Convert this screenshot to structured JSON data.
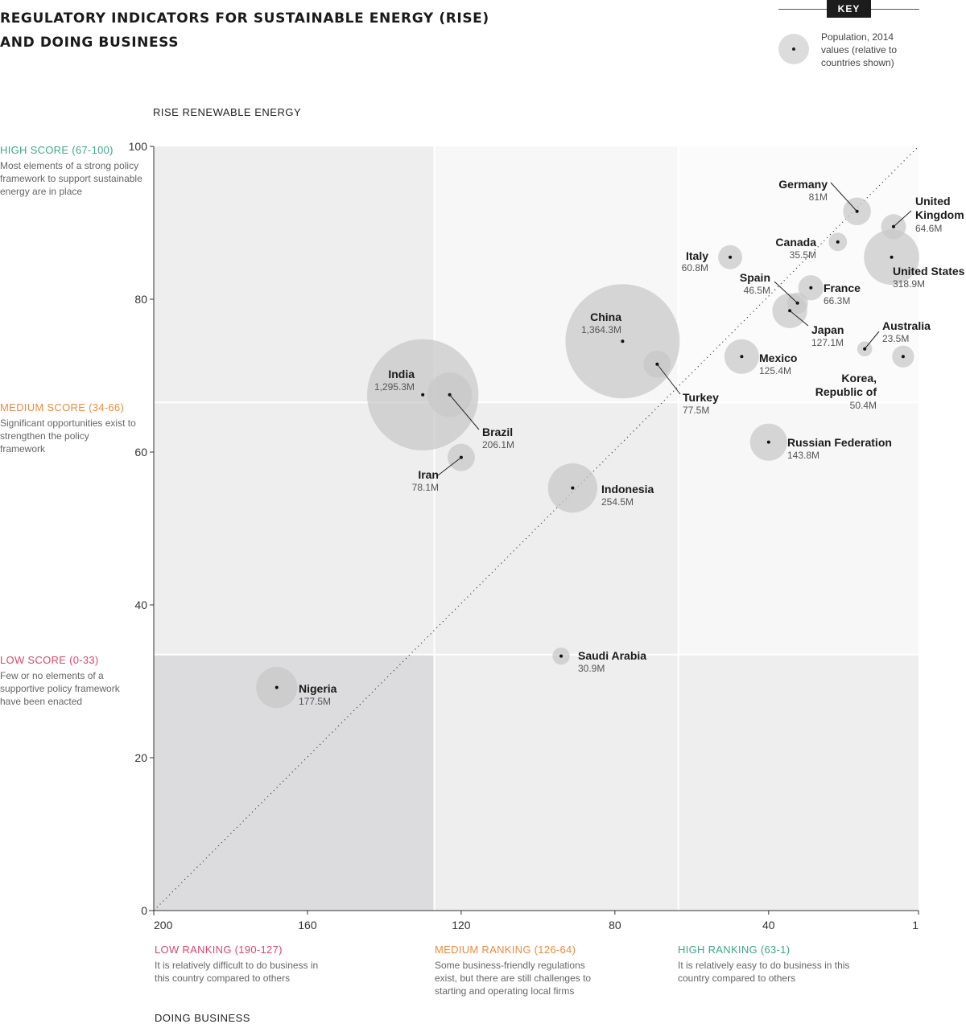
{
  "title_lines": [
    "REGULATORY INDICATORS FOR SUSTAINABLE ENERGY (RISE)",
    "AND DOING BUSINESS"
  ],
  "key": {
    "label": "KEY",
    "description": "Population, 2014 values (relative to countries shown)"
  },
  "y_bands": [
    {
      "title": "HIGH SCORE (67-100)",
      "color": "#3aaa8a",
      "desc": "Most elements of a strong policy framework to support sustainable energy are in place"
    },
    {
      "title": "MEDIUM SCORE (34-66)",
      "color": "#f08a3c",
      "desc": "Significant opportunities exist to strengthen the policy framework"
    },
    {
      "title": "LOW SCORE (0-33)",
      "color": "#e0456a",
      "desc": "Few or no elements of a supportive policy framework have been enacted"
    }
  ],
  "x_bands": [
    {
      "title": "LOW RANKING (190-127)",
      "color": "#e0456a",
      "desc": "It is relatively difficult to do business in this country compared to others"
    },
    {
      "title": "MEDIUM RANKING (126-64)",
      "color": "#f08a3c",
      "desc": "Some business-friendly regulations exist, but there are still challenges to starting and operating local firms"
    },
    {
      "title": "HIGH RANKING (63-1)",
      "color": "#3aaa8a",
      "desc": "It is relatively easy to do business in this country compared to others"
    }
  ],
  "chart_data": {
    "type": "scatter",
    "bubble": true,
    "title": "REGULATORY INDICATORS FOR SUSTAINABLE ENERGY (RISE) AND DOING BUSINESS",
    "xlabel": "DOING BUSINESS",
    "ylabel": "RISE RENEWABLE ENERGY",
    "xlim": [
      200,
      1
    ],
    "ylim": [
      0,
      100
    ],
    "xticks": [
      "200",
      "160",
      "120",
      "80",
      "40",
      "1"
    ],
    "xtick_values": [
      200,
      160,
      120,
      80,
      40,
      1
    ],
    "yticks": [
      "0",
      "20",
      "40",
      "60",
      "80",
      "100"
    ],
    "ytick_values": [
      0,
      20,
      40,
      60,
      80,
      100
    ],
    "size_measure": "Population, 2014 (millions)",
    "points": [
      {
        "name": "Germany",
        "label": "Germany",
        "pop": "81M",
        "x": 17,
        "y": 91.5,
        "population": 81
      },
      {
        "name": "United Kingdom",
        "label": "United Kingdom",
        "pop": "64.6M",
        "x": 7.5,
        "y": 89.5,
        "population": 64.6
      },
      {
        "name": "Canada",
        "label": "Canada",
        "pop": "35.5M",
        "x": 22,
        "y": 87.5,
        "population": 35.5
      },
      {
        "name": "United States",
        "label": "United States",
        "pop": "318.9M",
        "x": 8,
        "y": 85.5,
        "population": 318.9
      },
      {
        "name": "Italy",
        "label": "Italy",
        "pop": "60.8M",
        "x": 50,
        "y": 85.5,
        "population": 60.8
      },
      {
        "name": "Spain",
        "label": "Spain",
        "pop": "46.5M",
        "x": 32.5,
        "y": 79.5,
        "population": 46.5
      },
      {
        "name": "France",
        "label": "France",
        "pop": "66.3M",
        "x": 29,
        "y": 81.5,
        "population": 66.3
      },
      {
        "name": "Japan",
        "label": "Japan",
        "pop": "127.1M",
        "x": 34.5,
        "y": 78.5,
        "population": 127.1
      },
      {
        "name": "Australia",
        "label": "Australia",
        "pop": "23.5M",
        "x": 15,
        "y": 73.5,
        "population": 23.5
      },
      {
        "name": "Korea, Republic of",
        "label": "Korea, Republic of",
        "pop": "50.4M",
        "x": 5,
        "y": 72.5,
        "population": 50.4
      },
      {
        "name": "Mexico",
        "label": "Mexico",
        "pop": "125.4M",
        "x": 47,
        "y": 72.5,
        "population": 125.4
      },
      {
        "name": "China",
        "label": "China",
        "pop": "1,364.3M",
        "x": 78,
        "y": 74.5,
        "population": 1364.3
      },
      {
        "name": "Turkey",
        "label": "Turkey",
        "pop": "77.5M",
        "x": 69,
        "y": 71.5,
        "population": 77.5
      },
      {
        "name": "India",
        "label": "India",
        "pop": "1,295.3M",
        "x": 130,
        "y": 67.5,
        "population": 1295.3
      },
      {
        "name": "Brazil",
        "label": "Brazil",
        "pop": "206.1M",
        "x": 123,
        "y": 67.5,
        "population": 206.1
      },
      {
        "name": "Iran",
        "label": "Iran",
        "pop": "78.1M",
        "x": 120,
        "y": 59.3,
        "population": 78.1
      },
      {
        "name": "Russian Federation",
        "label": "Russian Federation",
        "pop": "143.8M",
        "x": 40,
        "y": 61.3,
        "population": 143.8
      },
      {
        "name": "Indonesia",
        "label": "Indonesia",
        "pop": "254.5M",
        "x": 91,
        "y": 55.3,
        "population": 254.5
      },
      {
        "name": "Saudi Arabia",
        "label": "Saudi Arabia",
        "pop": "30.9M",
        "x": 94,
        "y": 33.3,
        "population": 30.9
      },
      {
        "name": "Nigeria",
        "label": "Nigeria",
        "pop": "177.5M",
        "x": 168,
        "y": 29.2,
        "population": 177.5
      }
    ]
  },
  "colors": {
    "bubble": "#c8c8c8",
    "quadrant_dark": "#dcdcde",
    "quadrant_mid": "#eeeeee",
    "quadrant_light": "#f7f7f7",
    "quadrant_lightest": "#fbfbfb"
  }
}
